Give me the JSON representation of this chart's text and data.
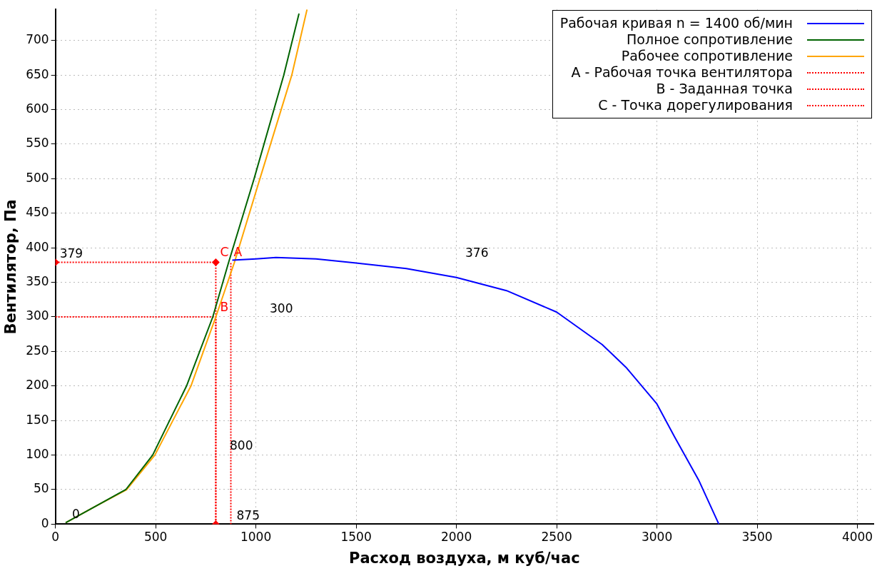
{
  "chart_data": {
    "type": "line",
    "xlabel": "Расход воздуха, м куб/час",
    "ylabel": "Вентилятор, Па",
    "xlim": [
      0,
      4080
    ],
    "xticks": [
      0,
      500,
      1000,
      1500,
      2000,
      2500,
      3000,
      3500,
      4000
    ],
    "ylim": [
      0,
      745
    ],
    "yticks": [
      0,
      50,
      100,
      150,
      200,
      250,
      300,
      350,
      400,
      450,
      500,
      550,
      600,
      650,
      700
    ],
    "grid": true,
    "legend": "top right",
    "marker": "none",
    "line_style": "solid",
    "series": [
      {
        "name": "Рабочая кривая n = 1400 об/мин",
        "color": "#0000ff",
        "x": [
          882,
          1000,
          1100,
          1300,
          1500,
          1750,
          2000,
          2250,
          2500,
          2727,
          2846,
          3000,
          3089,
          3208,
          3309
        ],
        "values": [
          382,
          384,
          386,
          384,
          378,
          370,
          357,
          338,
          307,
          260,
          227,
          174,
          126,
          64,
          0
        ]
      },
      {
        "name": "Полное сопротивление",
        "color": "#006400",
        "x": [
          51,
          195,
          351,
          485,
          654,
          785,
          864,
          991,
          1139,
          1215
        ],
        "values": [
          2,
          25,
          50,
          100,
          200,
          300,
          379,
          500,
          650,
          739
        ]
      },
      {
        "name": "Рабочее сопротивление",
        "color": "#ffa500",
        "x": [
          51,
          195,
          355,
          496,
          676,
          800,
          893,
          1020,
          1179,
          1255
        ],
        "values": [
          2,
          25,
          50,
          100,
          200,
          300,
          379,
          500,
          650,
          745
        ]
      },
      {
        "name": "A - Рабочая точка вентилятора",
        "color": "#ff0000",
        "line_style": "dotted",
        "x": [
          875,
          875
        ],
        "values": [
          0,
          379
        ]
      },
      {
        "name": "B - Заданная точка",
        "color": "#ff0000",
        "line_style": "dotted",
        "x": [
          0,
          800,
          800
        ],
        "values": [
          300,
          300,
          0
        ]
      },
      {
        "name": "C - Точка дорегулирования",
        "color": "#ff0000",
        "line_style": "dotted",
        "marker": "diamond",
        "x": [
          0,
          800,
          800
        ],
        "values": [
          379,
          379,
          0
        ]
      }
    ],
    "annotations": [
      {
        "text": "379",
        "x": 0,
        "y": 379
      },
      "300",
      "800",
      {
        "text": "875",
        "x": 875,
        "y": 0
      },
      "376",
      "0",
      {
        "text": "A",
        "x": 875,
        "y": 379
      },
      {
        "text": "B",
        "x": 800,
        "y": 300
      },
      {
        "text": "C",
        "x": 800,
        "y": 379
      }
    ]
  }
}
